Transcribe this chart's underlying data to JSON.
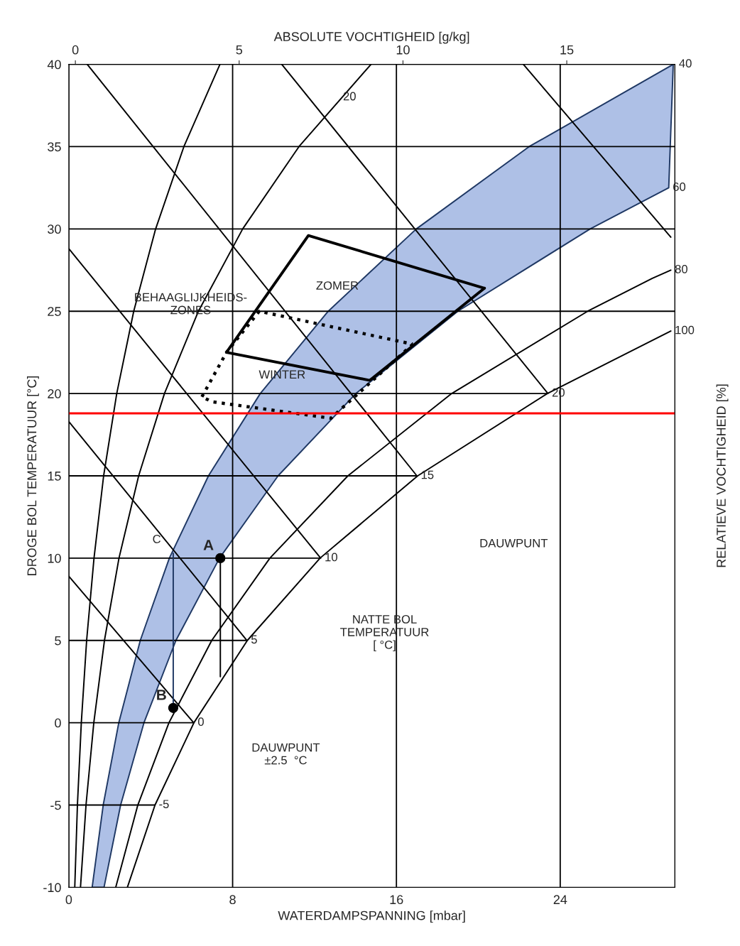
{
  "chart_data": {
    "type": "line",
    "xlabel": "WATERDAMPSPANNING [mbar]",
    "ylabel": "DROGE BOL TEMPERATUUR [°C]",
    "x2label": "ABSOLUTE VOCHTIGHEID [g/kg]",
    "y2label": "RELATIEVE VOCHTIGHEID [%]",
    "xlim": [
      0,
      29.6
    ],
    "xticks": [
      0,
      8,
      16,
      24
    ],
    "x2lim": [
      -0.2,
      18.3
    ],
    "x2ticks": [
      0,
      5,
      10,
      15
    ],
    "ylim": [
      -10,
      40
    ],
    "yticks": [
      -10,
      -5,
      0,
      5,
      10,
      15,
      20,
      25,
      30,
      35,
      40
    ],
    "grid": "x",
    "legend": false,
    "series": [
      {
        "type": "area",
        "color": "#aec0e6",
        "x": [
          1.14,
          1.68,
          2.44,
          3.49,
          4.91,
          6.82,
          9.35,
          12.67,
          16.97,
          22.48,
          29.52,
          29.3,
          25.46,
          19.0,
          14.02,
          10.22,
          7.36,
          5.23,
          3.67,
          2.53,
          1.72
        ],
        "values": [
          -10,
          -5,
          0,
          5,
          10,
          15,
          20,
          25,
          30,
          35,
          40,
          32.5,
          30,
          25,
          20,
          15,
          10,
          5,
          0,
          -5,
          -10
        ]
      },
      {
        "color": "#000000",
        "x": [
          0.29,
          0.42,
          0.61,
          0.87,
          1.23,
          1.7,
          2.34,
          3.17,
          4.24,
          5.62,
          7.38
        ],
        "values": [
          -10,
          -5,
          0,
          5,
          10,
          15,
          20,
          25,
          30,
          35,
          40
        ]
      },
      {
        "color": "#000000",
        "x": [
          0.57,
          0.84,
          1.22,
          1.74,
          2.45,
          3.41,
          4.67,
          6.33,
          8.49,
          11.24,
          14.76
        ],
        "values": [
          -10,
          -5,
          0,
          5,
          10,
          15,
          20,
          25,
          30,
          35,
          40
        ]
      },
      {
        "color": "#000000",
        "x": [
          2.29,
          3.37,
          4.89,
          6.98,
          9.82,
          13.63,
          18.7,
          25.34,
          28.5,
          29.4
        ],
        "values": [
          -10,
          -5,
          0,
          5,
          10,
          15,
          20,
          25,
          27,
          27.5
        ]
      },
      {
        "color": "#000000",
        "x": [
          2.86,
          4.21,
          6.11,
          8.72,
          12.27,
          17.04,
          23.37,
          29.4
        ],
        "values": [
          -10,
          -5,
          0,
          5,
          10,
          15,
          20,
          23.8
        ]
      },
      {
        "color": "#000000",
        "x": [
          4.2,
          0
        ],
        "values": [
          -5,
          -5
        ]
      },
      {
        "color": "#000000",
        "x": [
          0,
          6.1,
          0
        ],
        "values": [
          8.9,
          0,
          0
        ]
      },
      {
        "color": "#000000",
        "x": [
          0,
          8.7,
          0
        ],
        "values": [
          18.3,
          5,
          5
        ]
      },
      {
        "color": "#000000",
        "x": [
          0,
          12.3,
          0
        ],
        "values": [
          28.8,
          10,
          10
        ]
      },
      {
        "color": "#000000",
        "x": [
          0.9,
          17.0,
          0
        ],
        "values": [
          40,
          15,
          15
        ]
      },
      {
        "color": "#000000",
        "x": [
          10.4,
          23.4,
          0
        ],
        "values": [
          40,
          20,
          20
        ]
      },
      {
        "color": "#000000",
        "x": [
          22.2,
          29.4
        ],
        "values": [
          40,
          29.5
        ]
      },
      {
        "color": "#000000",
        "x": [
          7.7,
          11.7,
          20.3
        ],
        "values": [
          22.5,
          29.6,
          26.4
        ]
      },
      {
        "color": "#000000",
        "x": [
          20.3,
          14.7,
          7.7
        ],
        "values": [
          26.4,
          20.8,
          22.5
        ]
      },
      {
        "color": "#000000",
        "line_style": "dotted",
        "x": [
          6.5,
          7.7,
          9.3,
          16.8
        ],
        "values": [
          19.8,
          22.5,
          25.0,
          23.0
        ]
      },
      {
        "color": "#000000",
        "line_style": "dotted",
        "x": [
          16.8,
          12.8,
          7.0,
          6.5
        ],
        "values": [
          23.0,
          18.5,
          19.5,
          19.8
        ]
      },
      {
        "color": "#1f3864",
        "x": [
          5.1,
          5.1
        ],
        "values": [
          0.9,
          10.3
        ]
      },
      {
        "color": "#000000",
        "x": [
          7.4,
          7.4
        ],
        "values": [
          10,
          2.8
        ]
      },
      {
        "type": "scatter",
        "marker": "circle",
        "color": "#000000",
        "x": [
          7.4,
          5.1
        ],
        "values": [
          10,
          0.9
        ]
      }
    ],
    "ref_lines": [
      {
        "axis": "y",
        "value": 25,
        "color": "#000000"
      },
      {
        "axis": "y",
        "value": 30,
        "color": "#000000"
      },
      {
        "axis": "y",
        "value": 35,
        "color": "#000000"
      },
      {
        "axis": "y",
        "value": 18.8,
        "color": "#ff0000"
      }
    ],
    "annotations": [
      {
        "text": "-5",
        "x": 4.2,
        "y": -5
      },
      {
        "text": "0",
        "x": 6.1,
        "y": 0
      },
      {
        "text": "5",
        "x": 8.7,
        "y": 5
      },
      {
        "text": "10",
        "x": 12.3,
        "y": 10
      },
      {
        "text": "15",
        "x": 17.0,
        "y": 15
      },
      {
        "text": "20",
        "x": 23.4,
        "y": 20
      },
      {
        "text": "40",
        "x": 29.6,
        "y": 40
      },
      {
        "text": "60",
        "x": 29.3,
        "y": 32.5
      },
      {
        "text": "80",
        "x": 29.4,
        "y": 27.5
      },
      {
        "text": "100",
        "x": 29.4,
        "y": 23.8
      },
      {
        "text": "20",
        "x": 13.2,
        "y": 38.0
      },
      "BEHAAGLIJKHEIDS-\nZONES",
      "ZOMER",
      "WINTER",
      "DAUWPUNT",
      "NATTE BOL\nTEMPERATUUR\n[ °C]",
      "DAUWPUNT\n±2.5  °C",
      {
        "text": "A",
        "x": 7.4,
        "y": 10
      },
      {
        "text": "B",
        "x": 5.1,
        "y": 0.9
      },
      "C"
    ]
  }
}
